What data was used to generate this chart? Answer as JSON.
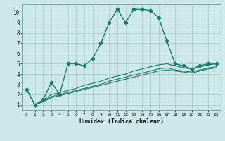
{
  "xlabel": "Humidex (Indice chaleur)",
  "xlim": [
    -0.5,
    23.5
  ],
  "ylim": [
    0.5,
    10.8
  ],
  "yticks": [
    1,
    2,
    3,
    4,
    5,
    6,
    7,
    8,
    9,
    10
  ],
  "xticks": [
    0,
    1,
    2,
    3,
    4,
    5,
    6,
    7,
    8,
    9,
    10,
    11,
    12,
    13,
    14,
    15,
    16,
    17,
    18,
    19,
    20,
    21,
    22,
    23
  ],
  "bg_color": "#cce8e8",
  "grid_color": "#aacccc",
  "line_color": "#1a7a6e",
  "lines": [
    {
      "x": [
        0,
        1,
        2,
        3,
        4,
        5,
        6,
        7,
        8,
        9,
        10,
        11,
        12,
        13,
        14,
        15,
        16,
        17,
        18,
        19,
        20,
        21,
        22,
        23
      ],
      "y": [
        2.5,
        1.0,
        1.5,
        3.2,
        2.0,
        5.0,
        5.0,
        4.8,
        5.5,
        7.0,
        9.0,
        10.3,
        9.0,
        10.3,
        10.3,
        10.2,
        9.5,
        7.2,
        5.0,
        4.8,
        4.5,
        4.8,
        5.0,
        5.0
      ],
      "marker": "D",
      "markersize": 2.5,
      "linewidth": 1.0
    },
    {
      "x": [
        0,
        1,
        2,
        3,
        4,
        5,
        6,
        7,
        8,
        9,
        10,
        11,
        12,
        13,
        14,
        15,
        16,
        17,
        18,
        19,
        20,
        21,
        22,
        23
      ],
      "y": [
        2.5,
        1.0,
        1.5,
        2.0,
        2.2,
        2.4,
        2.6,
        2.9,
        3.1,
        3.3,
        3.6,
        3.8,
        4.0,
        4.3,
        4.5,
        4.7,
        4.9,
        5.0,
        4.8,
        4.6,
        4.5,
        4.7,
        4.9,
        5.0
      ],
      "marker": null,
      "markersize": 0,
      "linewidth": 0.8
    },
    {
      "x": [
        0,
        1,
        2,
        3,
        4,
        5,
        6,
        7,
        8,
        9,
        10,
        11,
        12,
        13,
        14,
        15,
        16,
        17,
        18,
        19,
        20,
        21,
        22,
        23
      ],
      "y": [
        2.5,
        1.0,
        1.4,
        1.8,
        2.0,
        2.2,
        2.4,
        2.6,
        2.8,
        3.0,
        3.3,
        3.5,
        3.7,
        3.9,
        4.1,
        4.3,
        4.5,
        4.6,
        4.4,
        4.3,
        4.2,
        4.4,
        4.6,
        4.7
      ],
      "marker": null,
      "markersize": 0,
      "linewidth": 0.8
    },
    {
      "x": [
        0,
        1,
        2,
        3,
        4,
        5,
        6,
        7,
        8,
        9,
        10,
        11,
        12,
        13,
        14,
        15,
        16,
        17,
        18,
        19,
        20,
        21,
        22,
        23
      ],
      "y": [
        2.5,
        1.0,
        1.3,
        1.7,
        1.9,
        2.1,
        2.3,
        2.5,
        2.7,
        2.9,
        3.1,
        3.3,
        3.5,
        3.7,
        3.9,
        4.1,
        4.3,
        4.4,
        4.3,
        4.2,
        4.1,
        4.3,
        4.5,
        4.6
      ],
      "marker": null,
      "markersize": 0,
      "linewidth": 0.8
    }
  ]
}
